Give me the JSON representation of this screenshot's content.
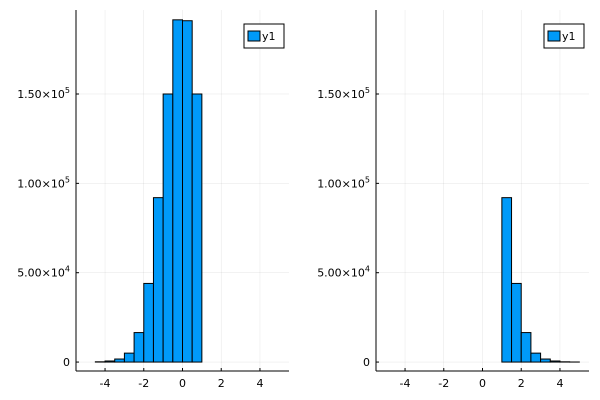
{
  "chart_data": [
    {
      "type": "bar",
      "title": "",
      "xlabel": "",
      "ylabel": "",
      "xlim": [
        -5.5,
        5.5
      ],
      "ylim": [
        -5000,
        197000
      ],
      "bin_width": 0.5,
      "x_ticks": [
        -4,
        -2,
        0,
        2,
        4
      ],
      "x_tick_labels": [
        "-4",
        "-2",
        "0",
        "2",
        "4"
      ],
      "y_ticks": [
        0,
        50000,
        100000,
        150000
      ],
      "y_tick_labels": [
        {
          "mant": "0",
          "exp": ""
        },
        {
          "mant": "5.00×10",
          "exp": "4"
        },
        {
          "mant": "1.00×10",
          "exp": "5"
        },
        {
          "mant": "1.50×10",
          "exp": "5"
        }
      ],
      "grid": true,
      "legend_position": "top-right",
      "series": [
        {
          "name": "y1",
          "color": "#009af9",
          "bins": [
            {
              "x0": -4.5,
              "x1": -4.0,
              "value": 150
            },
            {
              "x0": -4.0,
              "x1": -3.5,
              "value": 600
            },
            {
              "x0": -3.5,
              "x1": -3.0,
              "value": 1700
            },
            {
              "x0": -3.0,
              "x1": -2.5,
              "value": 5000
            },
            {
              "x0": -2.5,
              "x1": -2.0,
              "value": 16500
            },
            {
              "x0": -2.0,
              "x1": -1.5,
              "value": 44000
            },
            {
              "x0": -1.5,
              "x1": -1.0,
              "value": 92000
            },
            {
              "x0": -1.0,
              "x1": -0.5,
              "value": 150000
            },
            {
              "x0": -0.5,
              "x1": 0.0,
              "value": 191500
            },
            {
              "x0": 0.0,
              "x1": 0.5,
              "value": 191000
            },
            {
              "x0": 0.5,
              "x1": 1.0,
              "value": 150000
            }
          ]
        }
      ]
    },
    {
      "type": "bar",
      "title": "",
      "xlabel": "",
      "ylabel": "",
      "xlim": [
        -5.5,
        5.5
      ],
      "ylim": [
        -5000,
        197000
      ],
      "bin_width": 0.5,
      "x_ticks": [
        -4,
        -2,
        0,
        2,
        4
      ],
      "x_tick_labels": [
        "-4",
        "-2",
        "0",
        "2",
        "4"
      ],
      "y_ticks": [
        0,
        50000,
        100000,
        150000
      ],
      "y_tick_labels": [
        {
          "mant": "0",
          "exp": ""
        },
        {
          "mant": "5.00×10",
          "exp": "4"
        },
        {
          "mant": "1.00×10",
          "exp": "5"
        },
        {
          "mant": "1.50×10",
          "exp": "5"
        }
      ],
      "grid": true,
      "legend_position": "top-right",
      "series": [
        {
          "name": "y1",
          "color": "#009af9",
          "bins": [
            {
              "x0": 1.0,
              "x1": 1.5,
              "value": 92000
            },
            {
              "x0": 1.5,
              "x1": 2.0,
              "value": 44000
            },
            {
              "x0": 2.0,
              "x1": 2.5,
              "value": 16500
            },
            {
              "x0": 2.5,
              "x1": 3.0,
              "value": 5000
            },
            {
              "x0": 3.0,
              "x1": 3.5,
              "value": 1700
            },
            {
              "x0": 3.5,
              "x1": 4.0,
              "value": 600
            },
            {
              "x0": 4.0,
              "x1": 4.5,
              "value": 150
            },
            {
              "x0": 4.5,
              "x1": 5.0,
              "value": 40
            }
          ]
        }
      ]
    }
  ]
}
